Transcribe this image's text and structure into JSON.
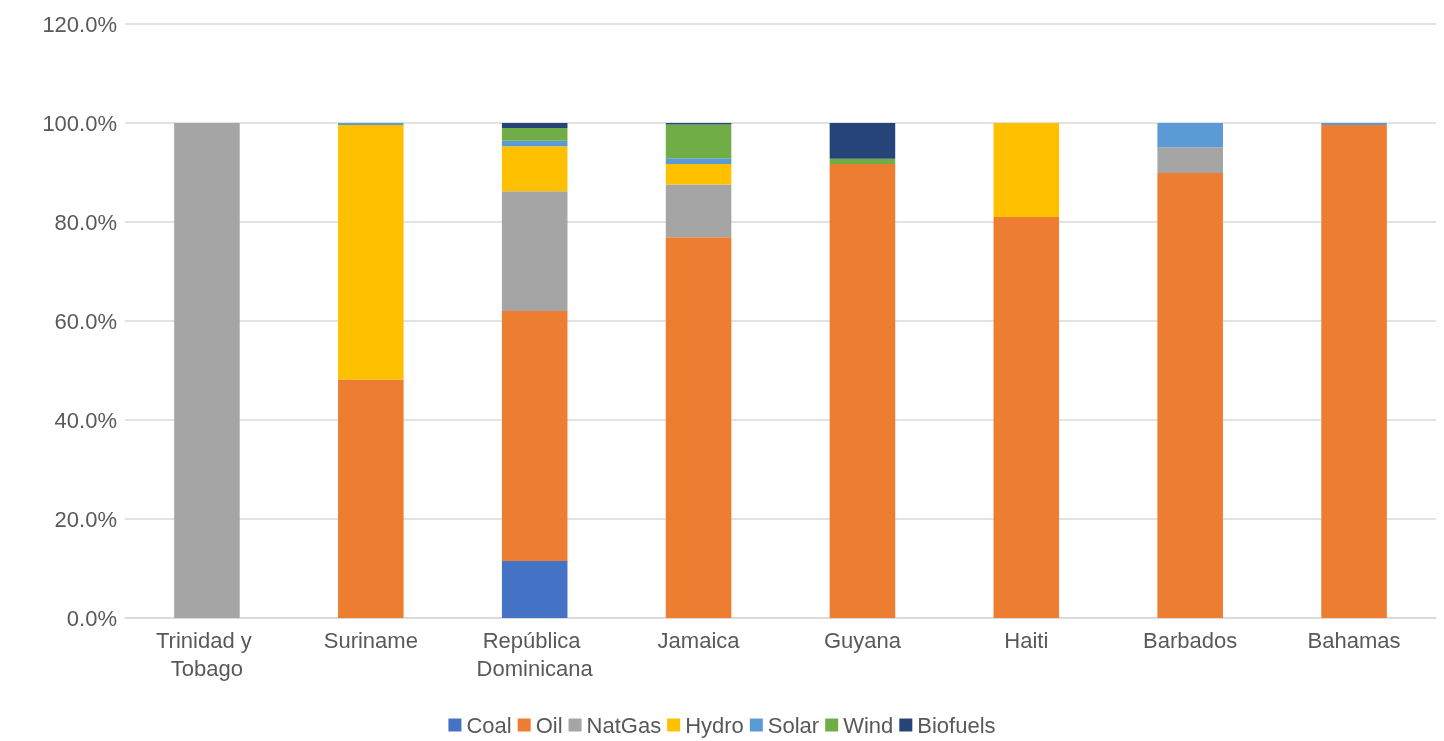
{
  "chart_data": {
    "type": "bar",
    "stacked": true,
    "categories": [
      "Trinidad y Tobago",
      "Suriname",
      "República Dominicana",
      "Jamaica",
      "Guyana",
      "Haiti",
      "Barbados",
      "Bahamas"
    ],
    "series": [
      {
        "name": "Coal",
        "color": "#4472c4",
        "values": [
          0,
          0,
          11.5,
          0,
          0,
          0,
          0,
          0
        ]
      },
      {
        "name": "Oil",
        "color": "#ed7d31",
        "values": [
          0,
          48.2,
          50.5,
          76.9,
          91.7,
          81.0,
          89.9,
          99.6
        ]
      },
      {
        "name": "NatGas",
        "color": "#a5a5a5",
        "values": [
          100,
          0,
          24.2,
          10.7,
          0,
          0,
          5.2,
          0
        ]
      },
      {
        "name": "Hydro",
        "color": "#ffc000",
        "values": [
          0,
          51.4,
          9.1,
          4.1,
          0,
          19.0,
          0,
          0
        ]
      },
      {
        "name": "Solar",
        "color": "#5b9bd5",
        "values": [
          0,
          0.4,
          1.1,
          1.2,
          0,
          0,
          4.9,
          0.4
        ]
      },
      {
        "name": "Wind",
        "color": "#70ad47",
        "values": [
          0,
          0,
          2.6,
          6.8,
          1.1,
          0,
          0,
          0
        ]
      },
      {
        "name": "Biofuels",
        "color": "#264478",
        "values": [
          0,
          0,
          1.0,
          0.3,
          7.2,
          0,
          0,
          0
        ]
      }
    ],
    "ylim": [
      0,
      120
    ],
    "yticks": [
      {
        "value": 0,
        "label": "0.0%"
      },
      {
        "value": 20,
        "label": "20.0%"
      },
      {
        "value": 40,
        "label": "40.0%"
      },
      {
        "value": 60,
        "label": "60.0%"
      },
      {
        "value": 80,
        "label": "80.0%"
      },
      {
        "value": 100,
        "label": "100.0%"
      },
      {
        "value": 120,
        "label": "120.0%"
      }
    ],
    "grid": "y",
    "legend": "bottom"
  }
}
